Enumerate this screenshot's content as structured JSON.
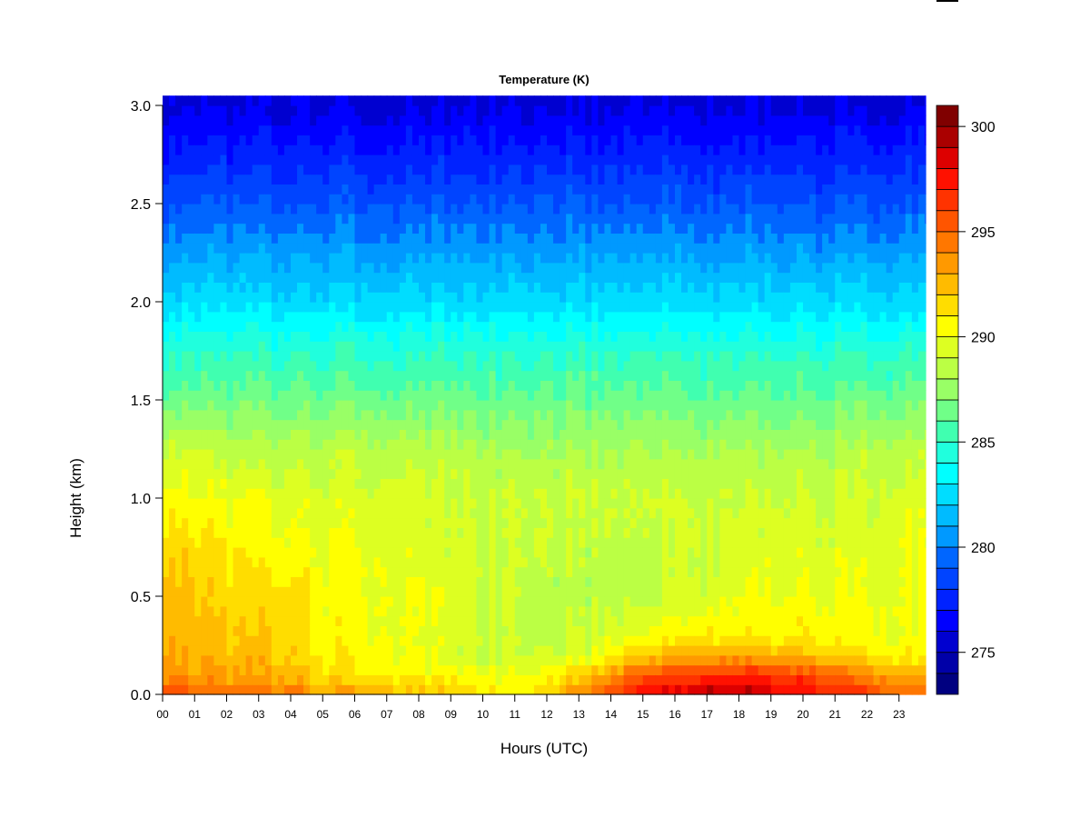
{
  "chart_data": {
    "type": "heatmap",
    "title": "Temperature (K)",
    "xlabel": "Hours (UTC)",
    "ylabel": "Height (km)",
    "xlim": [
      0,
      23.83
    ],
    "ylim": [
      0,
      3
    ],
    "x_tick_labels": [
      "00",
      "01",
      "02",
      "03",
      "04",
      "05",
      "06",
      "07",
      "08",
      "09",
      "10",
      "11",
      "12",
      "13",
      "14",
      "15",
      "16",
      "17",
      "18",
      "19",
      "20",
      "21",
      "22",
      "23"
    ],
    "y_tick_labels": [
      "0.0",
      "0.5",
      "1.0",
      "1.5",
      "2.0",
      "2.5",
      "3.0"
    ],
    "colorbar": {
      "range": [
        273,
        301
      ],
      "tick_labels": [
        "275",
        "280",
        "285",
        "290",
        "295",
        "300"
      ],
      "colors": [
        "#000080",
        "#0000A8",
        "#0000D0",
        "#0000FF",
        "#0022FF",
        "#0044FF",
        "#0066FF",
        "#0099FF",
        "#00BBFF",
        "#00DDFF",
        "#00FFFF",
        "#20FFDD",
        "#40FFB0",
        "#70FF88",
        "#99FF66",
        "#BBFF44",
        "#DDFF22",
        "#FFFF00",
        "#FFDD00",
        "#FFBB00",
        "#FF9900",
        "#FF7700",
        "#FF5500",
        "#FF3300",
        "#FF1100",
        "#DD0000",
        "#AA0000",
        "#800000"
      ]
    },
    "hours": [
      0,
      1,
      2,
      3,
      4,
      5,
      6,
      7,
      8,
      9,
      10,
      11,
      12,
      13,
      14,
      15,
      16,
      17,
      18,
      19,
      20,
      21,
      22,
      23
    ],
    "heights_km": [
      0,
      0.1,
      0.2,
      0.3,
      0.5,
      0.75,
      1.0,
      1.25,
      1.5,
      1.75,
      2.0,
      2.5,
      3.0
    ],
    "temperature_K": [
      [
        296,
        295.5,
        295,
        295,
        294.5,
        293.5,
        293,
        293,
        292.5,
        292,
        291,
        291,
        292,
        294,
        296,
        298,
        298.5,
        299.5,
        299.5,
        298.5,
        298,
        297,
        296,
        295
      ],
      [
        294,
        293.5,
        293,
        293,
        292.5,
        291.5,
        291,
        291,
        290.5,
        290.5,
        290,
        290,
        290.5,
        291.5,
        293.5,
        295.5,
        296,
        296.5,
        297,
        296.5,
        296,
        295,
        294,
        293
      ],
      [
        293.5,
        292.5,
        292.5,
        292.5,
        292,
        291,
        290.5,
        290.5,
        290,
        289.5,
        289,
        289,
        289,
        289.5,
        290.5,
        292,
        292.5,
        293,
        293,
        292.5,
        292.5,
        291.5,
        291,
        290.5
      ],
      [
        293,
        292.5,
        292,
        292,
        291.5,
        290.5,
        290.5,
        290,
        290,
        289.5,
        289,
        289,
        288.5,
        289,
        289.5,
        290,
        290.5,
        291,
        291,
        291,
        291,
        290.5,
        290.5,
        290
      ],
      [
        292.5,
        292,
        291.5,
        291.5,
        291.5,
        290.5,
        290.5,
        290,
        290,
        289.5,
        289,
        289,
        288.5,
        288.5,
        288.5,
        288.5,
        289,
        289.5,
        290,
        290,
        290,
        290,
        290,
        290
      ],
      [
        292,
        291.5,
        291,
        290.5,
        290.5,
        290,
        290,
        290,
        289.5,
        289.5,
        289,
        289,
        289,
        288.5,
        288.5,
        288.5,
        289,
        289,
        289.5,
        289.5,
        289.5,
        289.5,
        289.5,
        290
      ],
      [
        290.5,
        290,
        290,
        290,
        289.5,
        289.5,
        289.5,
        289.5,
        289.5,
        289,
        289,
        289,
        289,
        289,
        289,
        289,
        289,
        289,
        289,
        289,
        289,
        289,
        289,
        289.5
      ],
      [
        289,
        289,
        288.5,
        288.5,
        288.5,
        288.5,
        288.5,
        288.5,
        288.5,
        288.5,
        288,
        288,
        288,
        288,
        288,
        288,
        288,
        288,
        288,
        288,
        288,
        288,
        288.5,
        288.5
      ],
      [
        286.5,
        286.5,
        286.5,
        286.5,
        286.5,
        286.5,
        286.5,
        286.5,
        286.5,
        286.5,
        286.3,
        286.3,
        286.3,
        286.3,
        286.3,
        286.3,
        286.3,
        286.3,
        286.3,
        286.3,
        286.3,
        286.3,
        286.5,
        286.5
      ],
      [
        284.8,
        284.8,
        284.8,
        284.8,
        284.8,
        284.8,
        284.8,
        284.8,
        284.8,
        284.8,
        284.8,
        284.8,
        284.8,
        284.8,
        284.8,
        284.8,
        284.8,
        284.8,
        284.8,
        284.8,
        284.8,
        284.8,
        284.8,
        284.8
      ],
      [
        282.5,
        282.5,
        282.5,
        282.5,
        282.5,
        282.5,
        282.5,
        282.5,
        282.5,
        282.5,
        282.5,
        282.5,
        282.5,
        282.5,
        282.5,
        282.5,
        282.5,
        282.5,
        282.5,
        282.5,
        282.5,
        282.5,
        282.5,
        282.5
      ],
      [
        279,
        279,
        279,
        279,
        279,
        279,
        279,
        279,
        279,
        279,
        279,
        279,
        279,
        279,
        279,
        279,
        279,
        279,
        279,
        279,
        279,
        279,
        279,
        279
      ],
      [
        275.8,
        275.8,
        275.8,
        275.8,
        275.8,
        275.8,
        275.8,
        275.8,
        275.8,
        275.8,
        275.8,
        275.8,
        275.8,
        275.8,
        275.8,
        275.8,
        275.8,
        275.8,
        275.8,
        275.8,
        275.8,
        275.8,
        275.8,
        275.8
      ]
    ]
  }
}
